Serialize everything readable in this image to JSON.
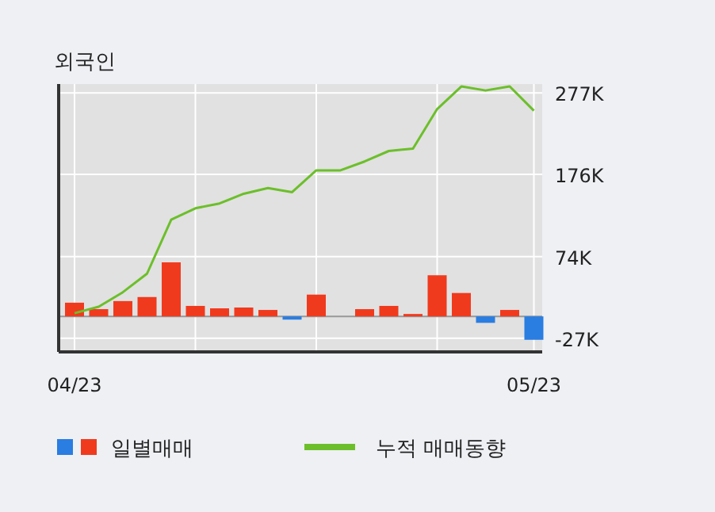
{
  "chart_data": {
    "type": "bar",
    "title": "외국인",
    "categories": [
      "04/23",
      null,
      null,
      null,
      null,
      null,
      null,
      null,
      null,
      null,
      null,
      null,
      null,
      null,
      null,
      null,
      null,
      null,
      null,
      "05/23"
    ],
    "series": [
      {
        "name": "일별매매",
        "colors": [
          "#f03a1e",
          "#f03a1e",
          "#f03a1e",
          "#f03a1e",
          "#f03a1e",
          "#f03a1e",
          "#f03a1e",
          "#f03a1e",
          "#f03a1e",
          "#2a7de1",
          "#f03a1e",
          "#f03a1e",
          "#f03a1e",
          "#f03a1e",
          "#f03a1e",
          "#f03a1e",
          "#f03a1e",
          "#2a7de1",
          "#f03a1e",
          "#2a7de1"
        ],
        "values": [
          17,
          9,
          19,
          24,
          67,
          13,
          10,
          11,
          8,
          -4,
          27,
          0,
          9,
          13,
          3,
          51,
          29,
          -8,
          8,
          -29
        ]
      },
      {
        "type": "line",
        "name": "누적 매매동향",
        "color": "#6cbf2a",
        "values": [
          4,
          12,
          30,
          53,
          120,
          134,
          140,
          152,
          159,
          154,
          181,
          181,
          192,
          205,
          208,
          257,
          285,
          280,
          285,
          255
        ]
      }
    ],
    "ylim": [
      -44,
      288
    ],
    "yticks": [
      {
        "value": 277,
        "label": "277K"
      },
      {
        "value": 176,
        "label": "176K"
      },
      {
        "value": 74,
        "label": "74K"
      },
      {
        "value": -27,
        "label": "-27K"
      }
    ],
    "grid": true,
    "legend": "bottom"
  }
}
